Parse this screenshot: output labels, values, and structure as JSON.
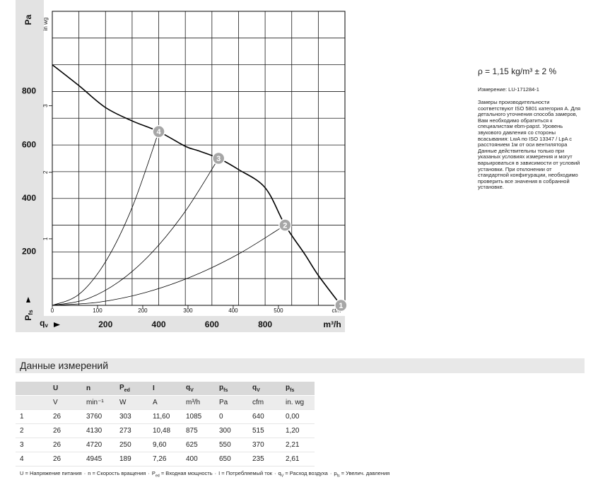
{
  "chart_data": {
    "type": "line",
    "y_label": "Pa",
    "y2_label": "in wg",
    "x_label": "m³/h",
    "x2_label": "cfm",
    "pfs_label": {
      "text": "P",
      "sub": "fs"
    },
    "qv_label": {
      "text": "q",
      "sub": "v"
    },
    "xlim": [
      0,
      1100
    ],
    "xticks": [
      200,
      400,
      600,
      800
    ],
    "ylim": [
      0,
      1100
    ],
    "yticks": [
      200,
      400,
      600,
      800
    ],
    "x2lim": [
      0,
      647
    ],
    "x2ticks": [
      0,
      100,
      200,
      300,
      400,
      500
    ],
    "y2lim": [
      0,
      4.42
    ],
    "y2ticks": [
      1,
      2,
      3
    ],
    "xgrid": [
      0,
      100,
      200,
      300,
      400,
      500,
      600,
      700,
      800,
      900,
      1000,
      1100
    ],
    "ygrid": [
      0,
      100,
      200,
      300,
      400,
      500,
      600,
      700,
      800,
      900,
      1000,
      1100
    ],
    "grid": true,
    "series": [
      {
        "color": "#000000",
        "width": 1.6,
        "x": [
          0,
          100,
          200,
          300,
          400,
          500,
          550,
          625,
          700,
          800,
          875,
          950,
          1000,
          1085
        ],
        "values": [
          900,
          822,
          740,
          690,
          650,
          595,
          578,
          550,
          508,
          440,
          300,
          190,
          112,
          0
        ]
      },
      {
        "color": "#000000",
        "width": 0.8,
        "x": [
          0,
          100,
          200,
          300,
          400
        ],
        "values": [
          0,
          41,
          163,
          366,
          650
        ]
      },
      {
        "color": "#000000",
        "width": 0.8,
        "x": [
          0,
          125,
          250,
          375,
          500,
          625
        ],
        "values": [
          0,
          22,
          88,
          198,
          352,
          550
        ]
      },
      {
        "color": "#000000",
        "width": 0.8,
        "x": [
          0,
          175,
          350,
          525,
          700,
          875
        ],
        "values": [
          0,
          12,
          48,
          108,
          192,
          300
        ]
      }
    ],
    "points": {
      "color": "#a6a6a6",
      "labels": [
        "1",
        "2",
        "3",
        "4"
      ],
      "x": [
        1085,
        875,
        625,
        400
      ],
      "values": [
        0,
        300,
        550,
        650
      ]
    }
  },
  "notes": {
    "density": "ρ = 1,15 kg/m³ ± 2 %",
    "measurement": "Измерение: LU-171284-1",
    "text_lines": [
      "Замеры производительности",
      "соответствуют ISO 5801 категория A. Для",
      "детального уточнения способа замеров,",
      "Вам необходимо обратиться к",
      "специалистам ebm-papst. Уровень",
      "звукового давления со стороны",
      "всасывания: LwA по ISO 13347 / LpA с",
      "расстоянием 1м от оси вентилятора",
      "Данные действительны только при",
      "указаных условиях измерения и могут",
      "варьироваться в зависимости от условий",
      "установки. При отклонении от",
      "стандартной конфигурации, необходимо",
      "проверить все значения в собранной",
      "установке."
    ]
  },
  "table": {
    "title": "Данные измерений",
    "header": [
      null,
      "U",
      "n",
      {
        "text": "P",
        "sub": "ed"
      },
      "I",
      {
        "text": "q",
        "sub": "V"
      },
      {
        "text": "p",
        "sub": "fs"
      },
      {
        "text": "q",
        "sub": "V"
      },
      {
        "text": "p",
        "sub": "fs"
      }
    ],
    "units": [
      null,
      "V",
      "min⁻¹",
      "W",
      "A",
      "m³/h",
      "Pa",
      "cfm",
      "in. wg"
    ],
    "rows": [
      [
        "1",
        "26",
        "3760",
        "303",
        "11,60",
        "1085",
        "0",
        "640",
        "0,00"
      ],
      [
        "2",
        "26",
        "4130",
        "273",
        "10,48",
        "875",
        "300",
        "515",
        "1,20"
      ],
      [
        "3",
        "26",
        "4720",
        "250",
        "9,60",
        "625",
        "550",
        "370",
        "2,21"
      ],
      [
        "4",
        "26",
        "4945",
        "189",
        "7,26",
        "400",
        "650",
        "235",
        "2,61"
      ]
    ],
    "legend": {
      "separator": "·",
      "items": [
        {
          "text": "U = Напряжение питания"
        },
        {
          "text": "n = Скорость вращения"
        },
        {
          "text": "P",
          "sub": "ed",
          "rest": " = Входная мощность"
        },
        {
          "text": "I = Потребляемый ток"
        },
        {
          "text": "q",
          "sub": "V",
          "rest": " = Расход воздуха"
        },
        {
          "text": "p",
          "sub": "fs",
          "rest": " = Увелич. давления"
        }
      ]
    }
  }
}
